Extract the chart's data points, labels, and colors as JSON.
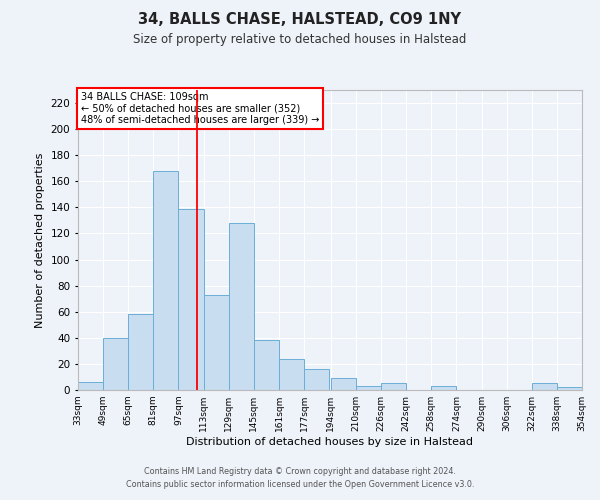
{
  "title": "34, BALLS CHASE, HALSTEAD, CO9 1NY",
  "subtitle": "Size of property relative to detached houses in Halstead",
  "xlabel": "Distribution of detached houses by size in Halstead",
  "ylabel": "Number of detached properties",
  "bar_color": "#c8ddf0",
  "bar_edge_color": "#6aaed6",
  "background_color": "#eef2f9",
  "grid_color": "#ffffff",
  "red_line_x": 109,
  "annotation_title": "34 BALLS CHASE: 109sqm",
  "annotation_line1": "← 50% of detached houses are smaller (352)",
  "annotation_line2": "48% of semi-detached houses are larger (339) →",
  "bin_edges": [
    33,
    49,
    65,
    81,
    97,
    113,
    129,
    145,
    161,
    177,
    194,
    210,
    226,
    242,
    258,
    274,
    290,
    306,
    322,
    338,
    354
  ],
  "bin_labels": [
    "33sqm",
    "49sqm",
    "65sqm",
    "81sqm",
    "97sqm",
    "113sqm",
    "129sqm",
    "145sqm",
    "161sqm",
    "177sqm",
    "194sqm",
    "210sqm",
    "226sqm",
    "242sqm",
    "258sqm",
    "274sqm",
    "290sqm",
    "306sqm",
    "322sqm",
    "338sqm",
    "354sqm"
  ],
  "counts": [
    6,
    40,
    58,
    168,
    139,
    73,
    128,
    38,
    24,
    16,
    9,
    3,
    5,
    0,
    3,
    0,
    0,
    0,
    5,
    2
  ],
  "ylim": [
    0,
    230
  ],
  "yticks": [
    0,
    20,
    40,
    60,
    80,
    100,
    120,
    140,
    160,
    180,
    200,
    220
  ],
  "footer1": "Contains HM Land Registry data © Crown copyright and database right 2024.",
  "footer2": "Contains public sector information licensed under the Open Government Licence v3.0."
}
